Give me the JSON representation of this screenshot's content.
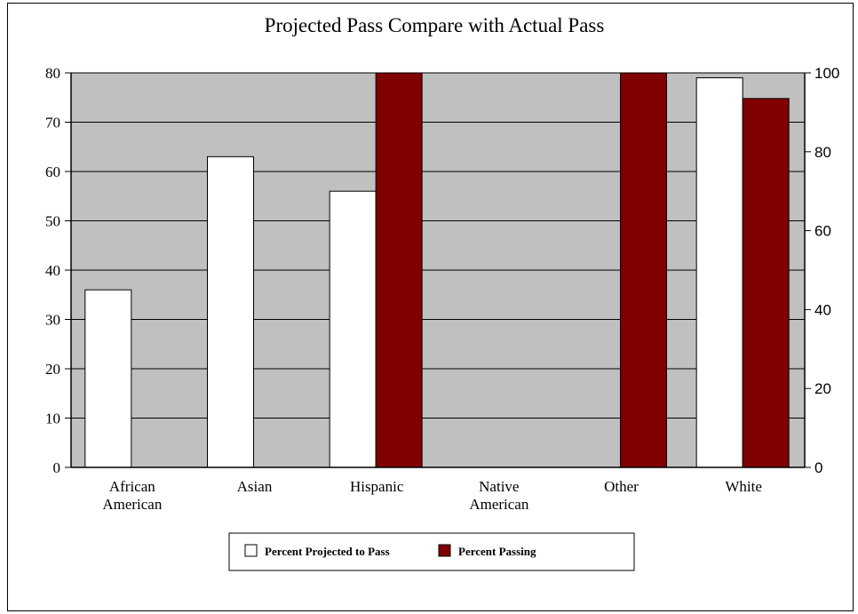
{
  "chart_data": {
    "type": "bar",
    "title": "Projected Pass Compare with Actual Pass",
    "categories": [
      [
        "African",
        "American"
      ],
      [
        "Asian"
      ],
      [
        "Hispanic"
      ],
      [
        "Native",
        "American"
      ],
      [
        "Other"
      ],
      [
        "White"
      ]
    ],
    "series": [
      {
        "name": "Percent Projected to Pass",
        "axis": "left",
        "color": "#ffffff",
        "values": [
          36,
          63,
          56,
          null,
          null,
          79
        ]
      },
      {
        "name": "Percent Passing",
        "axis": "right",
        "color": "#800000",
        "values": [
          null,
          null,
          100,
          null,
          100,
          93.5
        ]
      }
    ],
    "y_left": {
      "range": [
        0,
        80
      ],
      "ticks": [
        0,
        10,
        20,
        30,
        40,
        50,
        60,
        70,
        80
      ]
    },
    "y_right": {
      "range": [
        0,
        100
      ],
      "ticks": [
        0,
        20,
        40,
        60,
        80,
        100
      ]
    },
    "plot_background": "#c0c0c0",
    "grid": true,
    "legend_position": "bottom"
  }
}
